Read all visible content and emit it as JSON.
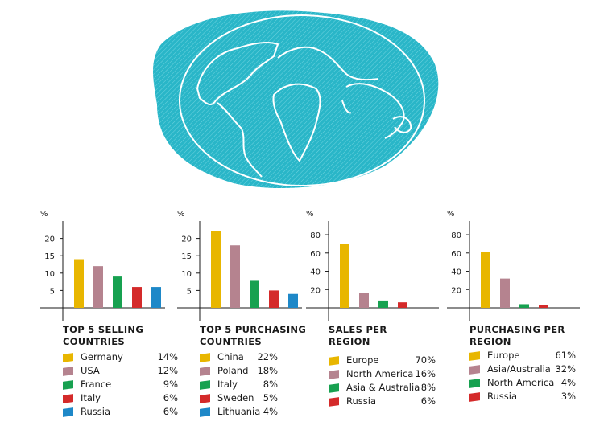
{
  "colors": {
    "globe": "#29b6c8",
    "yellow": "#e8b600",
    "mauve": "#b5838f",
    "green": "#17a150",
    "red": "#d42a2a",
    "blue": "#1e88c8"
  },
  "chart_data": [
    {
      "type": "bar",
      "title": "TOP 5 SELLING COUNTRIES",
      "ylabel": "%",
      "ylim": [
        0,
        25
      ],
      "yticks": [
        5,
        10,
        15,
        20
      ],
      "categories": [
        "Germany",
        "USA",
        "France",
        "Italy",
        "Russia"
      ],
      "values": [
        14,
        12,
        9,
        6,
        6
      ],
      "value_labels": [
        "14%",
        "12%",
        "9%",
        "6%",
        "6%"
      ],
      "colors": [
        "#e8b600",
        "#b5838f",
        "#17a150",
        "#d42a2a",
        "#1e88c8"
      ]
    },
    {
      "type": "bar",
      "title": "TOP 5 PURCHASING COUNTRIES",
      "ylabel": "%",
      "ylim": [
        0,
        25
      ],
      "yticks": [
        5,
        10,
        15,
        20
      ],
      "categories": [
        "China",
        "Poland",
        "Italy",
        "Sweden",
        "Lithuania"
      ],
      "values": [
        22,
        18,
        8,
        5,
        4
      ],
      "value_labels": [
        "22%",
        "18%",
        "8%",
        "5%",
        "4%"
      ],
      "colors": [
        "#e8b600",
        "#b5838f",
        "#17a150",
        "#d42a2a",
        "#1e88c8"
      ]
    },
    {
      "type": "bar",
      "title": "SALES PER REGION",
      "ylabel": "%",
      "ylim": [
        0,
        95
      ],
      "yticks": [
        20,
        40,
        60,
        80
      ],
      "categories": [
        "Europe",
        "North America",
        "Asia & Australia",
        "Russia"
      ],
      "values": [
        70,
        16,
        8,
        6
      ],
      "value_labels": [
        "70%",
        "16%",
        "8%",
        "6%"
      ],
      "colors": [
        "#e8b600",
        "#b5838f",
        "#17a150",
        "#d42a2a"
      ]
    },
    {
      "type": "bar",
      "title": "PURCHASING PER REGION",
      "ylabel": "%",
      "ylim": [
        0,
        95
      ],
      "yticks": [
        20,
        40,
        60,
        80
      ],
      "categories": [
        "Europe",
        "Asia/Australia",
        "North America",
        "Russia"
      ],
      "values": [
        61,
        32,
        4,
        3
      ],
      "value_labels": [
        "61%",
        "32%",
        "4%",
        "3%"
      ],
      "colors": [
        "#e8b600",
        "#b5838f",
        "#17a150",
        "#d42a2a"
      ]
    }
  ]
}
